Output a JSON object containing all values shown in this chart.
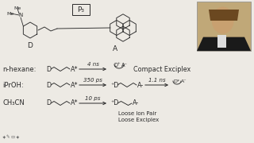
{
  "bg_color": "#edeae4",
  "text_color": "#2a2a2a",
  "arrow_color": "#2a2a2a",
  "p3_label": "P₃",
  "row1_label": "n-hexane:",
  "row2_label": "iPrOH:",
  "row3_label": "CH₃CN",
  "row1_time": "4 ns",
  "row2_time1": "350 ps",
  "row2_time2": "1.1 ns",
  "row3_time": "10 ps",
  "row1_product": "Compact Exciplex",
  "row3_product1": "Loose Ion Pair",
  "row3_product2": "Loose Exciplex",
  "photo_bg": "#b8a080",
  "photo_face": "#c8a878",
  "photo_suit": "#222222",
  "photo_hair": "#5a3a1a"
}
